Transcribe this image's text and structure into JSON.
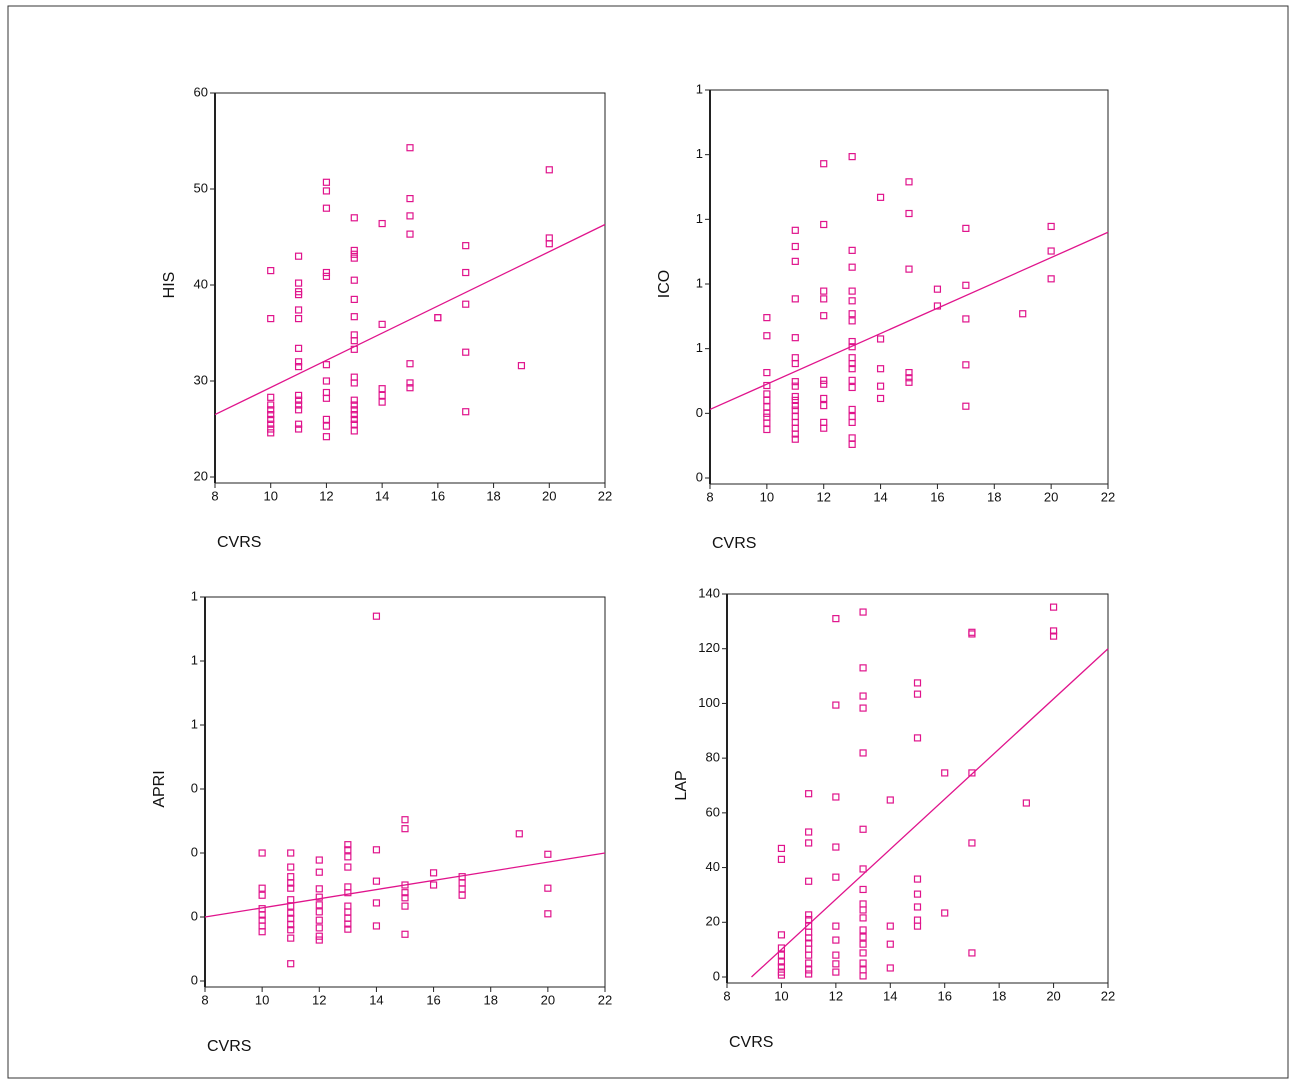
{
  "chart_data": [
    {
      "type": "scatter",
      "x_label": "CVRS",
      "y_label": "HIS",
      "color": "#e0148c",
      "xlim": [
        8,
        22
      ],
      "xticks": [
        8,
        10,
        12,
        14,
        16,
        18,
        20,
        22
      ],
      "ylim": [
        20,
        60
      ],
      "yticks": [
        20,
        30,
        40,
        50,
        60
      ],
      "x": [
        10,
        10,
        10,
        10,
        10,
        10,
        10,
        10,
        10,
        10,
        11,
        11,
        11,
        11,
        11,
        11,
        11,
        11,
        11,
        11,
        11,
        11,
        11,
        11,
        11,
        12,
        12,
        12,
        12,
        12,
        12,
        12,
        12,
        12,
        12,
        12,
        12,
        13,
        13,
        13,
        13,
        13,
        13,
        13,
        13,
        13,
        13,
        13,
        13,
        13,
        13,
        13,
        13,
        13,
        13,
        13,
        14,
        14,
        14,
        14,
        14,
        15,
        15,
        15,
        15,
        15,
        15,
        15,
        16,
        16,
        17,
        17,
        17,
        17,
        17,
        19,
        20,
        20,
        20
      ],
      "y": [
        41.5,
        36.5,
        28.3,
        27.5,
        27,
        26.5,
        26,
        25.5,
        25,
        24.6,
        43,
        40.2,
        39.3,
        39,
        37.4,
        36.5,
        33.4,
        32,
        31.5,
        28.5,
        28,
        27.5,
        27,
        25.5,
        25,
        50.7,
        49.8,
        48,
        41.3,
        40.9,
        31.7,
        30,
        28.8,
        28.2,
        26,
        25.3,
        24.2,
        47,
        43.6,
        43.2,
        42.8,
        40.5,
        38.5,
        36.7,
        34.8,
        34.2,
        33.3,
        30.4,
        29.8,
        28,
        27.5,
        27,
        26.5,
        26,
        25.5,
        24.8,
        46.4,
        35.9,
        29.2,
        28.5,
        27.8,
        54.3,
        49,
        47.2,
        45.3,
        31.8,
        29.8,
        29.3,
        36.6,
        36.6,
        44.1,
        41.3,
        38,
        33,
        26.8,
        31.6,
        52,
        44.9,
        44.3
      ],
      "fit": {
        "x": [
          8,
          22
        ],
        "y": [
          26.5,
          46.3
        ]
      }
    },
    {
      "type": "scatter",
      "x_label": "CVRS",
      "y_label": "ICO",
      "color": "#e0148c",
      "xlim": [
        8,
        22
      ],
      "xticks": [
        8,
        10,
        12,
        14,
        16,
        18,
        20,
        22
      ],
      "ylim": [
        0.3,
        0.9
      ],
      "yticks": [
        {
          "value": 0.3,
          "label": "0"
        },
        {
          "value": 0.4,
          "label": "0"
        },
        {
          "value": 0.5,
          "label": "1"
        },
        {
          "value": 0.6,
          "label": "1"
        },
        {
          "value": 0.7,
          "label": "1"
        },
        {
          "value": 0.8,
          "label": "1"
        },
        {
          "value": 0.9,
          "label": "1"
        }
      ],
      "x": [
        10,
        10,
        10,
        10,
        10,
        10,
        10,
        10,
        10,
        10,
        10,
        11,
        11,
        11,
        11,
        11,
        11,
        11,
        11,
        11,
        11,
        11,
        11,
        11,
        11,
        11,
        11,
        11,
        11,
        12,
        12,
        12,
        12,
        12,
        12,
        12,
        12,
        12,
        12,
        12,
        13,
        13,
        13,
        13,
        13,
        13,
        13,
        13,
        13,
        13,
        13,
        13,
        13,
        13,
        13,
        13,
        13,
        13,
        13,
        14,
        14,
        14,
        14,
        14,
        15,
        15,
        15,
        15,
        15,
        15,
        16,
        16,
        17,
        17,
        17,
        17,
        17,
        19,
        20,
        20,
        20
      ],
      "y": [
        0.548,
        0.52,
        0.463,
        0.443,
        0.43,
        0.42,
        0.41,
        0.4,
        0.394,
        0.385,
        0.375,
        0.683,
        0.658,
        0.635,
        0.577,
        0.517,
        0.486,
        0.477,
        0.449,
        0.442,
        0.426,
        0.42,
        0.412,
        0.405,
        0.395,
        0.386,
        0.377,
        0.368,
        0.36,
        0.786,
        0.692,
        0.589,
        0.577,
        0.551,
        0.451,
        0.445,
        0.423,
        0.412,
        0.386,
        0.377,
        0.797,
        0.652,
        0.626,
        0.589,
        0.574,
        0.554,
        0.543,
        0.511,
        0.503,
        0.486,
        0.477,
        0.469,
        0.451,
        0.44,
        0.406,
        0.395,
        0.386,
        0.362,
        0.352,
        0.734,
        0.515,
        0.469,
        0.442,
        0.423,
        0.758,
        0.709,
        0.623,
        0.463,
        0.455,
        0.448,
        0.592,
        0.566,
        0.686,
        0.598,
        0.546,
        0.475,
        0.411,
        0.554,
        0.689,
        0.651,
        0.608
      ],
      "fit": {
        "x": [
          8,
          22
        ],
        "y": [
          0.406,
          0.68
        ]
      }
    },
    {
      "type": "scatter",
      "x_label": "CVRS",
      "y_label": "APRI",
      "color": "#e0148c",
      "xlim": [
        8,
        22
      ],
      "xticks": [
        8,
        10,
        12,
        14,
        16,
        18,
        20,
        22
      ],
      "ylim": [
        0.1,
        0.7
      ],
      "yticks": [
        {
          "value": 0.1,
          "label": "0"
        },
        {
          "value": 0.2,
          "label": "0"
        },
        {
          "value": 0.3,
          "label": "0"
        },
        {
          "value": 0.4,
          "label": "0"
        },
        {
          "value": 0.5,
          "label": "1"
        },
        {
          "value": 0.6,
          "label": "1"
        },
        {
          "value": 0.7,
          "label": "1"
        }
      ],
      "x": [
        10,
        10,
        10,
        10,
        10,
        10,
        10,
        10,
        11,
        11,
        11,
        11,
        11,
        11,
        11,
        11,
        11,
        11,
        11,
        11,
        11,
        12,
        12,
        12,
        12,
        12,
        12,
        12,
        12,
        12,
        12,
        13,
        13,
        13,
        13,
        13,
        13,
        13,
        13,
        13,
        13,
        13,
        14,
        14,
        14,
        14,
        14,
        15,
        15,
        15,
        15,
        15,
        15,
        15,
        16,
        16,
        17,
        17,
        17,
        17,
        19,
        20,
        20,
        20
      ],
      "y": [
        0.3,
        0.245,
        0.234,
        0.213,
        0.203,
        0.195,
        0.186,
        0.177,
        0.3,
        0.278,
        0.263,
        0.253,
        0.245,
        0.227,
        0.217,
        0.206,
        0.198,
        0.188,
        0.18,
        0.167,
        0.127,
        0.289,
        0.27,
        0.244,
        0.231,
        0.219,
        0.208,
        0.195,
        0.183,
        0.17,
        0.164,
        0.313,
        0.305,
        0.294,
        0.278,
        0.247,
        0.238,
        0.217,
        0.208,
        0.198,
        0.189,
        0.181,
        0.67,
        0.305,
        0.256,
        0.222,
        0.186,
        0.352,
        0.338,
        0.25,
        0.238,
        0.23,
        0.217,
        0.173,
        0.269,
        0.25,
        0.263,
        0.253,
        0.244,
        0.234,
        0.33,
        0.298,
        0.245,
        0.205
      ],
      "fit": {
        "x": [
          8,
          22
        ],
        "y": [
          0.2,
          0.3
        ]
      }
    },
    {
      "type": "scatter",
      "x_label": "CVRS",
      "y_label": "LAP",
      "color": "#e0148c",
      "xlim": [
        8,
        22
      ],
      "xticks": [
        8,
        10,
        12,
        14,
        16,
        18,
        20,
        22
      ],
      "ylim": [
        0,
        140
      ],
      "yticks": [
        0,
        20,
        40,
        60,
        80,
        100,
        120,
        140
      ],
      "x": [
        10,
        10,
        10,
        10,
        10,
        10,
        10,
        10,
        10,
        11,
        11,
        11,
        11,
        11,
        11,
        11,
        11,
        11,
        11,
        11,
        11,
        11,
        11,
        11,
        12,
        12,
        12,
        12,
        12,
        12,
        12,
        12,
        12,
        12,
        13,
        13,
        13,
        13,
        13,
        13,
        13,
        13,
        13,
        13,
        13,
        13,
        13,
        13,
        13,
        13,
        13,
        13,
        14,
        14,
        14,
        14,
        15,
        15,
        15,
        15,
        15,
        15,
        15,
        15,
        16,
        16,
        17,
        17,
        17,
        17,
        17,
        19,
        20,
        20,
        20
      ],
      "y": [
        47,
        43,
        15.4,
        10.6,
        8,
        5.5,
        3.7,
        1.8,
        0.7,
        67,
        53,
        49,
        35,
        22.7,
        21,
        18.6,
        16.4,
        14.3,
        12.4,
        10.2,
        8,
        5.1,
        2.6,
        1.1,
        131,
        99.4,
        65.8,
        47.5,
        36.5,
        18.6,
        13.5,
        8,
        4.8,
        1.8,
        133.4,
        113,
        102.7,
        98.3,
        81.9,
        54,
        39.5,
        32,
        26.7,
        24.5,
        21.6,
        17.2,
        14.6,
        12,
        8.8,
        5.1,
        2.6,
        0.4,
        64.7,
        18.6,
        12,
        3.3,
        107.5,
        103.4,
        87.4,
        35.8,
        30.3,
        25.6,
        20.8,
        18.6,
        74.6,
        23.4,
        126,
        125.4,
        74.6,
        49,
        8.8,
        63.6,
        135.2,
        126.5,
        124.6
      ],
      "fit": {
        "x": [
          8.9,
          22
        ],
        "y": [
          0,
          120
        ]
      }
    }
  ]
}
